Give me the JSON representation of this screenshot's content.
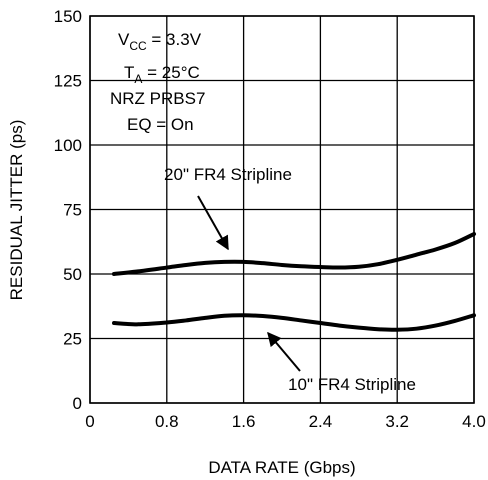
{
  "chart_data": {
    "type": "line",
    "title": "",
    "xlabel": "DATA RATE (Gbps)",
    "ylabel": "RESIDUAL JITTER (ps)",
    "xlim": [
      0,
      4.0
    ],
    "ylim": [
      0,
      150
    ],
    "xticks": [
      0,
      0.8,
      1.6,
      2.4,
      3.2,
      4.0
    ],
    "xtick_labels": [
      "0",
      "0.8",
      "1.6",
      "2.4",
      "3.2",
      "4.0"
    ],
    "yticks": [
      0,
      25,
      50,
      75,
      100,
      125,
      150
    ],
    "ytick_labels": [
      "0",
      "25",
      "50",
      "75",
      "100",
      "125",
      "150"
    ],
    "grid": true,
    "conditions": {
      "vcc_main": "V",
      "vcc_sub": "CC",
      "vcc_value": " = 3.3V",
      "ta_main": "T",
      "ta_sub": "A",
      "ta_value": " = 25°C",
      "pattern": "NRZ PRBS7",
      "eq": "EQ = On"
    },
    "series": [
      {
        "name": "20\" FR4 Stripline",
        "x": [
          0.25,
          0.5,
          0.8,
          1.0,
          1.2,
          1.4,
          1.6,
          1.8,
          2.0,
          2.2,
          2.4,
          2.6,
          2.8,
          3.0,
          3.2,
          3.4,
          3.6,
          3.8,
          4.0
        ],
        "y": [
          50,
          51,
          52.5,
          53.5,
          54.3,
          54.7,
          54.7,
          54.2,
          53.5,
          53,
          52.7,
          52.5,
          52.8,
          53.8,
          55.5,
          57.5,
          59.5,
          62,
          65.5
        ]
      },
      {
        "name": "10\" FR4 Stripline",
        "x": [
          0.25,
          0.5,
          0.8,
          1.0,
          1.2,
          1.4,
          1.6,
          1.8,
          2.0,
          2.2,
          2.4,
          2.6,
          2.8,
          3.0,
          3.2,
          3.4,
          3.6,
          3.8,
          4.0
        ],
        "y": [
          31,
          30.5,
          31.2,
          32,
          33,
          33.8,
          34,
          33.7,
          33,
          32,
          31,
          30,
          29.2,
          28.6,
          28.4,
          28.8,
          30,
          31.8,
          34
        ]
      }
    ],
    "annotations": [
      {
        "text": "20\" FR4 Stripline",
        "series": 0
      },
      {
        "text": "10\" FR4 Stripline",
        "series": 1
      }
    ]
  }
}
